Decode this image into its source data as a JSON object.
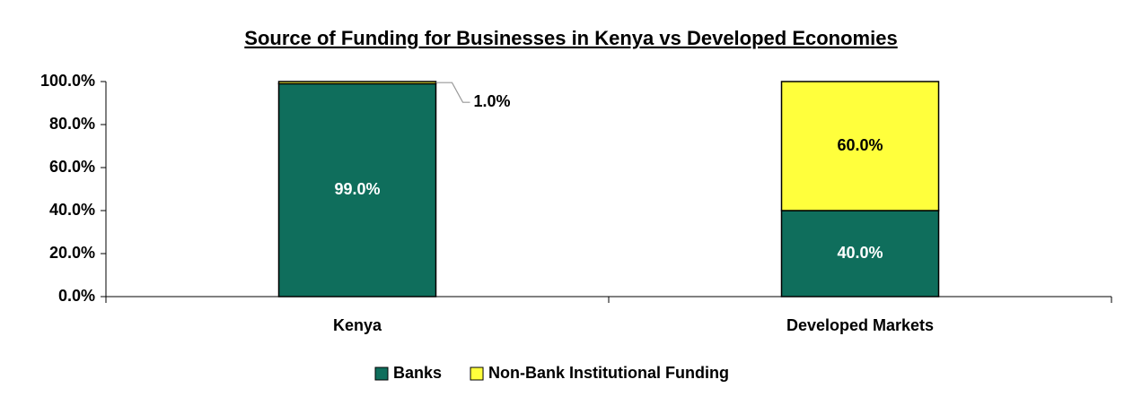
{
  "chart_data": {
    "type": "stacked_bar",
    "title": "Source of Funding for Businesses in Kenya vs Developed Economies",
    "categories": [
      "Kenya",
      "Developed Markets"
    ],
    "series": [
      {
        "name": "Banks",
        "color": "#0f6e5c",
        "values": [
          99,
          40
        ],
        "value_labels": [
          "99.0%",
          "40.0%"
        ]
      },
      {
        "name": "Non-Bank Institutional Funding",
        "color": "#ffff3c",
        "values": [
          1,
          60
        ],
        "value_labels": [
          "1.0%",
          "60.0%"
        ]
      }
    ],
    "ylim": [
      0,
      100
    ],
    "yticks": [
      {
        "value": 0,
        "label": "0.0%"
      },
      {
        "value": 20,
        "label": "20.0%"
      },
      {
        "value": 40,
        "label": "40.0%"
      },
      {
        "value": 60,
        "label": "60.0%"
      },
      {
        "value": 80,
        "label": "80.0%"
      },
      {
        "value": 100,
        "label": "100.0%"
      }
    ],
    "legend": "bottom"
  }
}
